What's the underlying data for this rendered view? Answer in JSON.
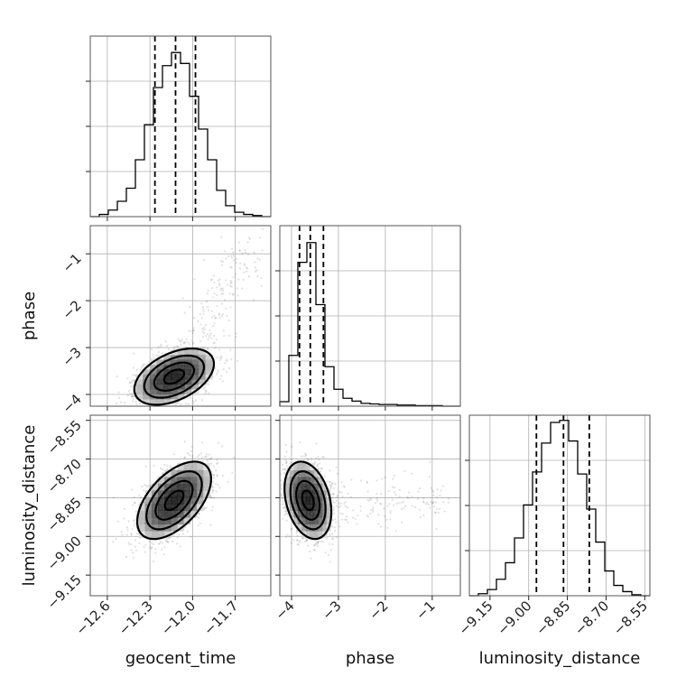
{
  "chart_data": {
    "type": "corner",
    "parameters": [
      "geocent_time",
      "phase",
      "luminosity_distance"
    ],
    "axis_labels": {
      "geocent_time": "geocent_time",
      "phase": "phase",
      "luminosity_distance": "luminosity_distance"
    },
    "ranges": {
      "geocent_time": [
        -12.72,
        -11.45
      ],
      "phase": [
        -4.25,
        -0.4
      ],
      "luminosity_distance": [
        -9.23,
        -8.53
      ]
    },
    "ticks": {
      "geocent_time": [
        -12.6,
        -12.3,
        -12.0,
        -11.7
      ],
      "phase": [
        -4,
        -3,
        -2,
        -1
      ],
      "luminosity_distance": [
        -9.15,
        -9.0,
        -8.85,
        -8.7,
        -8.55
      ]
    },
    "tick_labels": {
      "geocent_time": [
        "−12.6",
        "−12.3",
        "−12.0",
        "−11.7"
      ],
      "phase": [
        "−4",
        "−3",
        "−2",
        "−1"
      ],
      "luminosity_distance": [
        "−9.15",
        "−9.00",
        "−8.85",
        "−8.70",
        "−8.55"
      ]
    },
    "marginals": {
      "geocent_time": {
        "bin_edges": [
          -12.72,
          -12.6565,
          -12.593,
          -12.5295,
          -12.466,
          -12.4025,
          -12.339,
          -12.2755,
          -12.212,
          -12.1485,
          -12.085,
          -12.0215,
          -11.958,
          -11.8945,
          -11.831,
          -11.7675,
          -11.704,
          -11.6405,
          -11.577,
          -11.5135,
          -11.45
        ],
        "counts": [
          0,
          2,
          6,
          14,
          26,
          52,
          84,
          118,
          138,
          150,
          140,
          110,
          80,
          52,
          24,
          10,
          4,
          2,
          1,
          0
        ],
        "ymax": 165,
        "quantiles": [
          -12.265,
          -12.12,
          -11.98
        ]
      },
      "phase": {
        "bin_edges": [
          -4.25,
          -4.0575,
          -3.865,
          -3.6725,
          -3.48,
          -3.2875,
          -3.095,
          -2.9025,
          -2.71,
          -2.5175,
          -2.325,
          -2.1325,
          -1.94,
          -1.7475,
          -1.555,
          -1.3625,
          -1.17,
          -0.9775,
          -0.785,
          -0.5925,
          -0.4
        ],
        "counts": [
          8,
          90,
          255,
          290,
          180,
          70,
          30,
          14,
          9,
          5,
          4,
          3,
          3,
          2,
          2,
          1,
          1,
          1,
          0,
          0
        ],
        "ymax": 320,
        "quantiles": [
          -3.83,
          -3.6,
          -3.32
        ]
      },
      "luminosity_distance": {
        "bin_edges": [
          -9.23,
          -9.195,
          -9.16,
          -9.125,
          -9.09,
          -9.055,
          -9.02,
          -8.985,
          -8.95,
          -8.915,
          -8.88,
          -8.845,
          -8.81,
          -8.775,
          -8.74,
          -8.705,
          -8.67,
          -8.635,
          -8.6,
          -8.565,
          -8.53
        ],
        "counts": [
          0,
          2,
          6,
          16,
          32,
          56,
          88,
          120,
          148,
          168,
          170,
          150,
          118,
          84,
          52,
          24,
          10,
          4,
          1,
          0
        ],
        "ymax": 175,
        "quantiles": [
          -8.97,
          -8.865,
          -8.765
        ]
      }
    },
    "joint": {
      "phase_vs_geocent_time": {
        "mean": [
          -12.13,
          -3.62
        ],
        "sd": [
          0.14,
          0.3
        ],
        "rho": 0.45,
        "outlier_tail": "upper-right"
      },
      "luminosity_distance_vs_geocent_time": {
        "mean": [
          -12.13,
          -8.86
        ],
        "sd": [
          0.13,
          0.075
        ],
        "rho": 0.55
      },
      "luminosity_distance_vs_phase": {
        "mean": [
          -3.65,
          -8.86
        ],
        "sd": [
          0.25,
          0.075
        ],
        "rho": -0.3
      }
    },
    "contour_levels_sigma": [
      0.5,
      1.0,
      1.5,
      2.0
    ],
    "grid": true,
    "legend": "none"
  }
}
